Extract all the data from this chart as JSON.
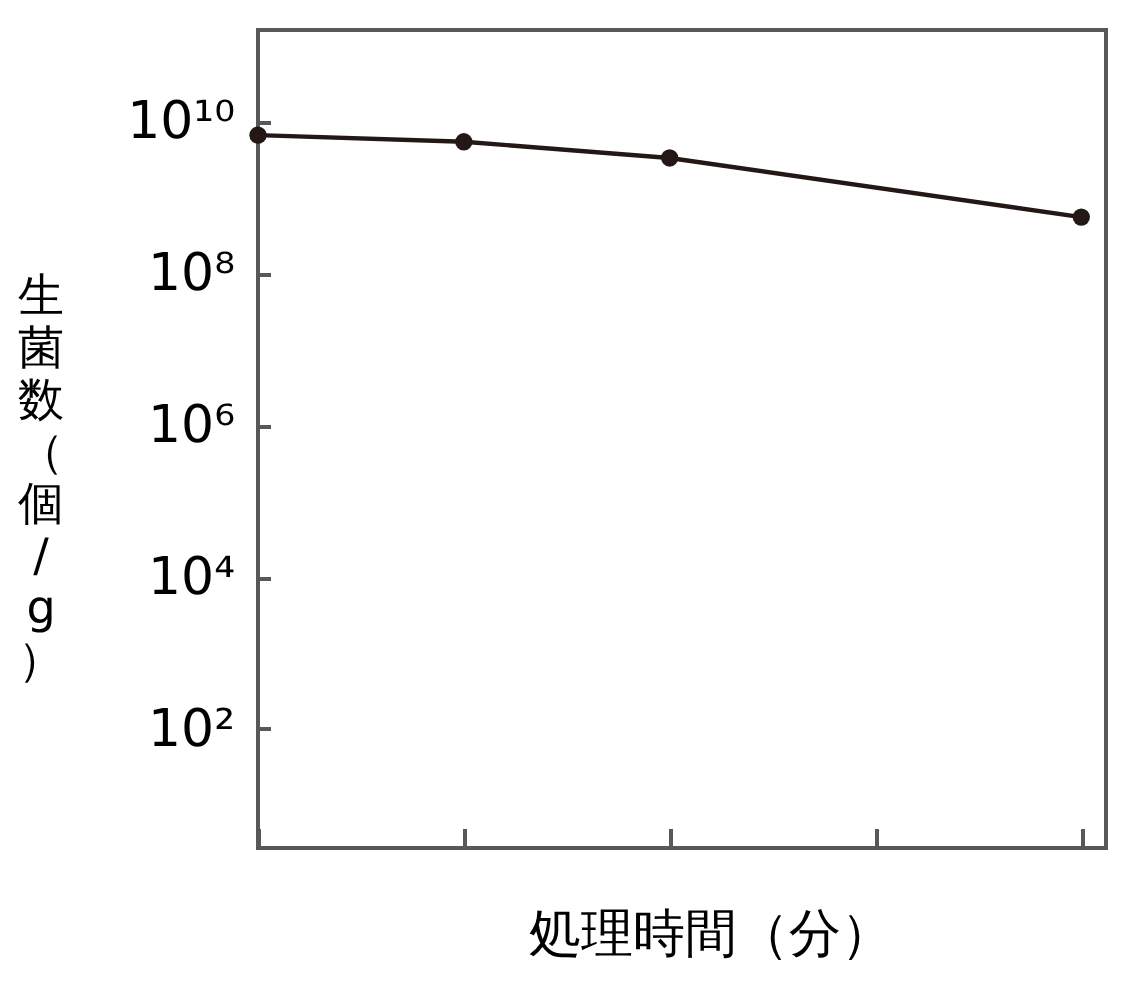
{
  "chart_data": {
    "type": "line",
    "xlabel": "処理時間（分）",
    "ylabel": "生菌数（個/g）",
    "categories": [
      null,
      null,
      null,
      null,
      null
    ],
    "values": [
      6600000000.0,
      5400000000.0,
      3300000000.0,
      null,
      550000000.0
    ],
    "color": "#231815",
    "marker": "circle",
    "line_style": "solid",
    "log": "y",
    "ylim": [
      2.7,
      160000000000.0
    ],
    "yticks": [
      {
        "value": 100,
        "label": "10²"
      },
      {
        "value": 10000,
        "label": "10⁴"
      },
      {
        "value": 1000000,
        "label": "10⁶"
      },
      {
        "value": 100000000,
        "label": "10⁸"
      },
      {
        "value": 10000000000,
        "label": "10¹⁰"
      }
    ],
    "tick_labels": "y",
    "grid": false
  }
}
